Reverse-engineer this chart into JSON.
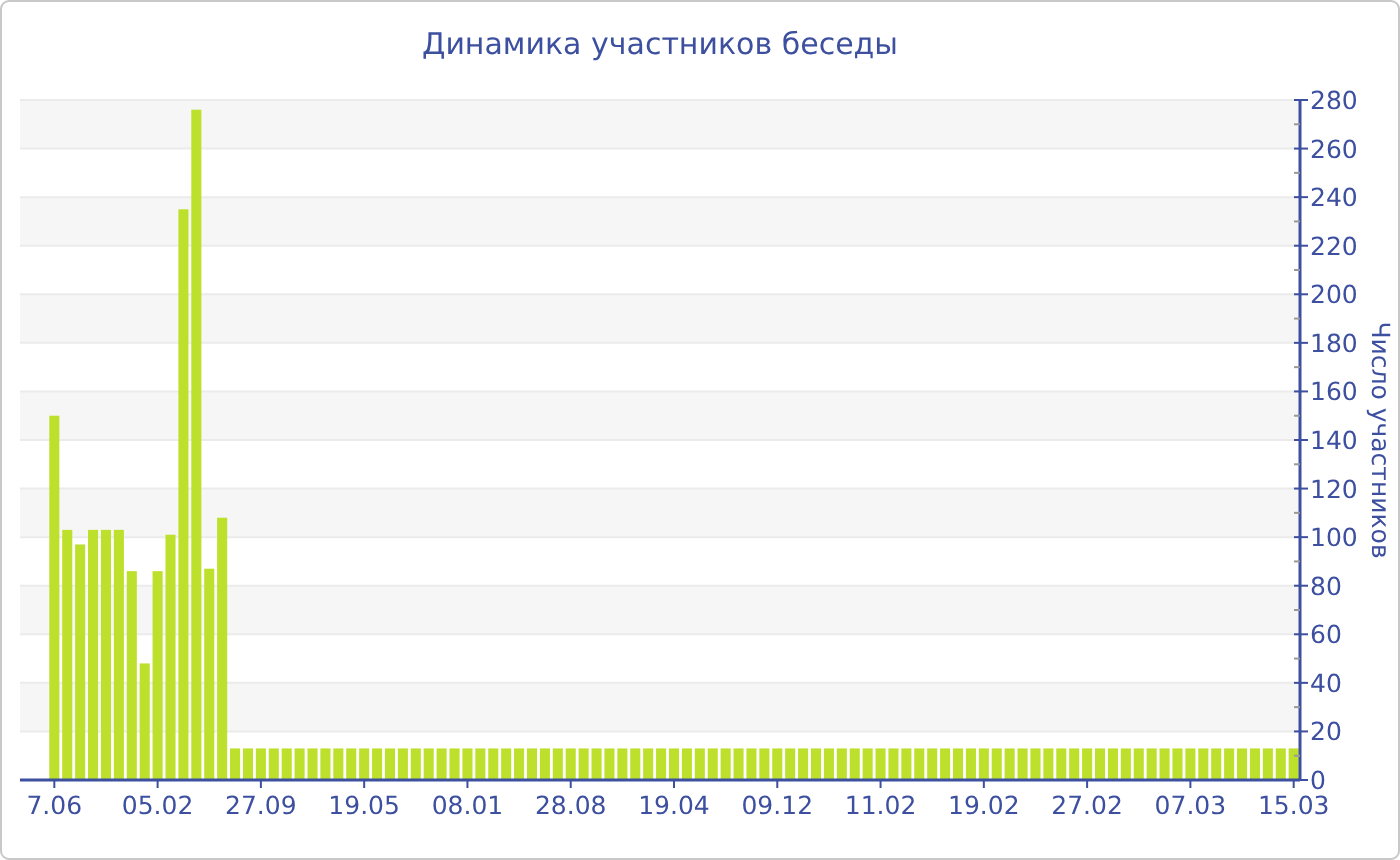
{
  "chart_data": {
    "type": "bar",
    "title": "Динамика участников беседы",
    "ylabel": "Число участников",
    "categories": [
      "7.06",
      null,
      null,
      null,
      null,
      null,
      null,
      null,
      "05.02",
      null,
      null,
      null,
      null,
      null,
      null,
      null,
      "27.09",
      null,
      null,
      null,
      null,
      null,
      null,
      null,
      "19.05",
      null,
      null,
      null,
      null,
      null,
      null,
      null,
      "08.01",
      null,
      null,
      null,
      null,
      null,
      null,
      null,
      "28.08",
      null,
      null,
      null,
      null,
      null,
      null,
      null,
      "19.04",
      null,
      null,
      null,
      null,
      null,
      null,
      null,
      "09.12",
      null,
      null,
      null,
      null,
      null,
      null,
      null,
      "11.02",
      null,
      null,
      null,
      null,
      null,
      null,
      null,
      "19.02",
      null,
      null,
      null,
      null,
      null,
      null,
      null,
      "27.02",
      null,
      null,
      null,
      null,
      null,
      null,
      null,
      "07.03",
      null,
      null,
      null,
      null,
      null,
      null,
      null,
      "15.03"
    ],
    "values": [
      150,
      103,
      97,
      103,
      103,
      103,
      86,
      48,
      86,
      101,
      235,
      276,
      87,
      108,
      13,
      13,
      13,
      13,
      13,
      13,
      13,
      13,
      13,
      13,
      13,
      13,
      13,
      13,
      13,
      13,
      13,
      13,
      13,
      13,
      13,
      13,
      13,
      13,
      13,
      13,
      13,
      13,
      13,
      13,
      13,
      13,
      13,
      13,
      13,
      13,
      13,
      13,
      13,
      13,
      13,
      13,
      13,
      13,
      13,
      13,
      13,
      13,
      13,
      13,
      13,
      13,
      13,
      13,
      13,
      13,
      13,
      13,
      13,
      13,
      13,
      13,
      13,
      13,
      13,
      13,
      13,
      13,
      13,
      13,
      13,
      13,
      13,
      13,
      13,
      13,
      13,
      13,
      13,
      13,
      13,
      13,
      13
    ],
    "color": "#bde02c",
    "ylim": [
      0,
      280
    ],
    "yticks": [
      0,
      20,
      40,
      60,
      80,
      100,
      120,
      140,
      160,
      180,
      200,
      220,
      240,
      260,
      280
    ],
    "grid": "y"
  }
}
